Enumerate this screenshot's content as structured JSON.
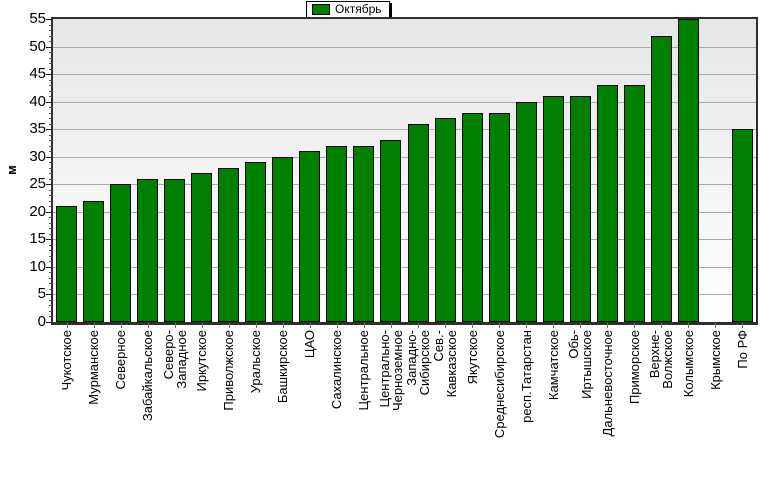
{
  "chart_data": {
    "type": "bar",
    "title": "",
    "legend_label": "Октябрь",
    "legend_position": "top-center",
    "ylabel": "м",
    "ylim": [
      0,
      55
    ],
    "ytick_step": 5,
    "yticks": [
      0,
      5,
      10,
      15,
      20,
      25,
      30,
      35,
      40,
      45,
      50,
      55
    ],
    "grid": "horizontal",
    "bar_color": "#008000",
    "bar_border_color": "#000000",
    "grid_color": "#a8a8a8",
    "plot_bg_top": "#e6e6e6",
    "plot_bg_bottom": "#ffffff",
    "categories": [
      "Чукотское",
      "Мурманское",
      "Северное",
      "Забайкальское",
      "Северо-Западное",
      "Иркутское",
      "Приволжское",
      "Уральское",
      "Башкирское",
      "ЦАО",
      "Сахалинское",
      "Центральное",
      "Центрально-Черноземное",
      "Западно-Сибирское",
      "Сев.-Кавказское",
      "Якутское",
      "Среднесибирское",
      "респ.Татарстан",
      "Камчатское",
      "Обь-Иртышское",
      "Дальневосточное",
      "Приморское",
      "Верхне-Волжское",
      "Колымское",
      "Крымское",
      "По РФ"
    ],
    "x_label_lines": [
      [
        "Чукотское"
      ],
      [
        "Мурманское"
      ],
      [
        "Северное"
      ],
      [
        "Забайкальское"
      ],
      [
        "Северо-",
        "Западное"
      ],
      [
        "Иркутское"
      ],
      [
        "Приволжское"
      ],
      [
        "Уральское"
      ],
      [
        "Башкирское"
      ],
      [
        "ЦАО"
      ],
      [
        "Сахалинское"
      ],
      [
        "Центральное"
      ],
      [
        "Центрально-",
        "Черноземное"
      ],
      [
        "Западно-",
        "Сибирское"
      ],
      [
        "Сев.-",
        "Кавказское"
      ],
      [
        "Якутское"
      ],
      [
        "Среднесибирское"
      ],
      [
        "респ.Татарстан"
      ],
      [
        "Камчатское"
      ],
      [
        "Обь-",
        "Иртышское"
      ],
      [
        "Дальневосточное"
      ],
      [
        "Приморское"
      ],
      [
        "Верхне-",
        "Волжское"
      ],
      [
        "Колымское"
      ],
      [
        "Крымское"
      ],
      [
        "По РФ"
      ]
    ],
    "values": [
      21,
      22,
      25,
      26,
      26,
      27,
      28,
      29,
      30,
      31,
      32,
      32,
      33,
      36,
      37,
      38,
      38,
      40,
      41,
      41,
      43,
      43,
      52,
      55,
      null,
      35
    ]
  }
}
